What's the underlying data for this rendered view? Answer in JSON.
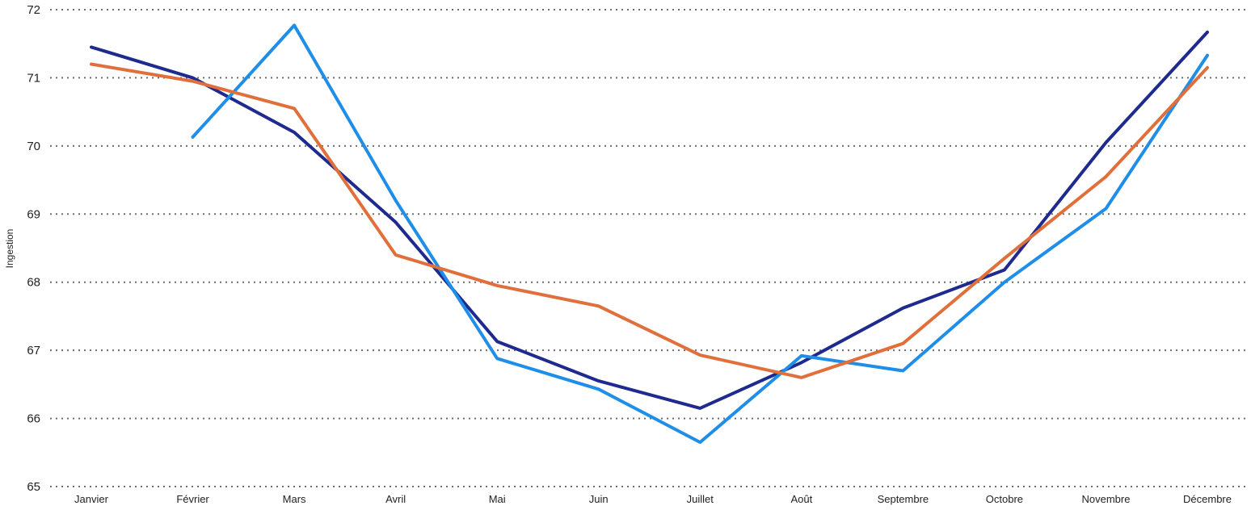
{
  "chart_data": {
    "type": "line",
    "title": "",
    "xlabel": "",
    "ylabel": "Ingestion",
    "ylim": [
      65,
      72
    ],
    "yticks": [
      65,
      66,
      67,
      68,
      69,
      70,
      71,
      72
    ],
    "grid": true,
    "legend": "none",
    "categories": [
      "Janvier",
      "Février",
      "Mars",
      "Avril",
      "Mai",
      "Juin",
      "Juillet",
      "Août",
      "Septembre",
      "Octobre",
      "Novembre",
      "Décembre"
    ],
    "series": [
      {
        "color": "#1f2a8f",
        "values": [
          71.45,
          71.0,
          70.2,
          68.88,
          67.13,
          66.55,
          66.15,
          66.82,
          67.62,
          68.18,
          70.05,
          71.67
        ]
      },
      {
        "color": "#1f8ee8",
        "values": [
          null,
          70.13,
          71.77,
          69.2,
          66.88,
          66.43,
          65.65,
          66.92,
          66.7,
          68.0,
          69.08,
          71.33
        ]
      },
      {
        "color": "#e06f3c",
        "values": [
          71.2,
          70.95,
          70.55,
          68.4,
          67.95,
          67.65,
          66.93,
          66.6,
          67.1,
          68.35,
          69.55,
          71.15
        ]
      }
    ]
  }
}
